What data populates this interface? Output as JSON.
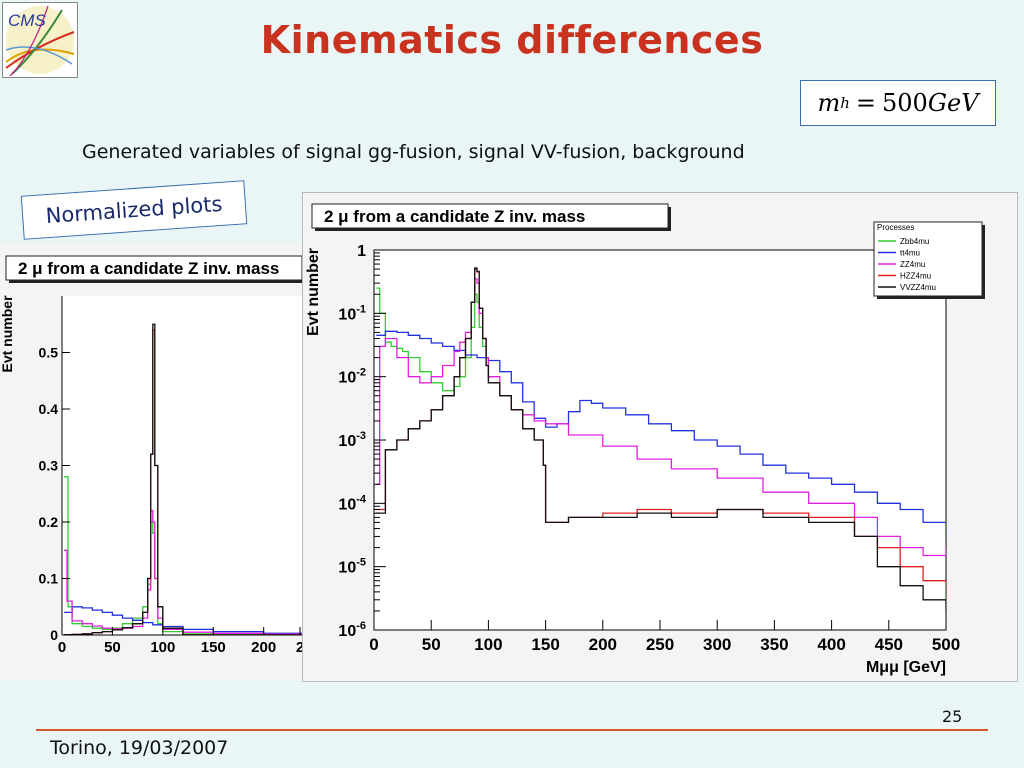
{
  "slide": {
    "logo_text": "CMS",
    "title": "Kinematics differences",
    "formula": {
      "var": "m",
      "sub": "h",
      "eq": "=",
      "num": "500",
      "unit": "GeV"
    },
    "subtitle": "Generated variables of  signal gg-fusion, signal VV-fusion, background",
    "note": "Normalized plots",
    "footer": "Torino, 19/03/2007",
    "page_number": "25"
  },
  "chart_data": [
    {
      "type": "line",
      "title": "2 μ from a candidate Z inv. mass",
      "ylabel": "Evt number",
      "xlabel": "",
      "ylim": [
        0,
        0.6
      ],
      "xlim": [
        0,
        240
      ],
      "yscale": "linear",
      "x_ticks": [
        "0",
        "50",
        "100",
        "150",
        "200",
        "2"
      ],
      "y_ticks": [
        "0",
        "0.1",
        "0.2",
        "0.3",
        "0.4",
        "0.5"
      ],
      "grid": false,
      "series": [
        {
          "name": "Zbb4mu",
          "color": "#33cc33",
          "x": [
            2,
            6,
            10,
            20,
            30,
            40,
            50,
            60,
            70,
            80,
            85,
            88,
            90,
            92,
            95,
            100,
            120,
            150,
            200,
            240
          ],
          "values": [
            0.28,
            0.05,
            0.02,
            0.015,
            0.012,
            0.01,
            0.012,
            0.02,
            0.03,
            0.05,
            0.09,
            0.2,
            0.18,
            0.1,
            0.02,
            0.006,
            0.002,
            0.001,
            0.0005,
            0.0003
          ]
        },
        {
          "name": "tt4mu",
          "color": "#2233dd",
          "x": [
            2,
            10,
            20,
            30,
            40,
            50,
            60,
            70,
            80,
            90,
            100,
            120,
            150,
            200,
            240
          ],
          "values": [
            0.04,
            0.05,
            0.048,
            0.044,
            0.04,
            0.035,
            0.03,
            0.026,
            0.022,
            0.018,
            0.015,
            0.01,
            0.006,
            0.003,
            0.002
          ]
        },
        {
          "name": "ZZ4mu",
          "color": "#e020e0",
          "x": [
            2,
            5,
            10,
            20,
            30,
            40,
            50,
            60,
            70,
            80,
            85,
            88,
            90,
            92,
            95,
            100,
            120,
            150,
            200,
            240
          ],
          "values": [
            0.15,
            0.06,
            0.025,
            0.02,
            0.016,
            0.012,
            0.011,
            0.012,
            0.015,
            0.03,
            0.08,
            0.22,
            0.2,
            0.1,
            0.03,
            0.01,
            0.005,
            0.003,
            0.0015,
            0.001
          ]
        },
        {
          "name": "HZZ4mu",
          "color": "#e02020",
          "x": [
            2,
            10,
            20,
            30,
            40,
            50,
            60,
            70,
            80,
            85,
            88,
            90,
            92,
            95,
            100,
            120,
            150,
            200,
            240
          ],
          "values": [
            0.0005,
            0.001,
            0.002,
            0.004,
            0.006,
            0.009,
            0.013,
            0.02,
            0.04,
            0.1,
            0.32,
            0.54,
            0.3,
            0.05,
            0.012,
            0.0002,
            6e-05,
            5e-05,
            4e-05
          ]
        },
        {
          "name": "VVZZ4mu",
          "color": "#111111",
          "x": [
            2,
            10,
            20,
            30,
            40,
            50,
            60,
            70,
            80,
            85,
            88,
            90,
            92,
            95,
            100,
            120,
            150,
            200,
            240
          ],
          "values": [
            0.0005,
            0.001,
            0.002,
            0.004,
            0.006,
            0.009,
            0.013,
            0.02,
            0.04,
            0.1,
            0.32,
            0.55,
            0.3,
            0.05,
            0.012,
            0.0002,
            6e-05,
            5e-05,
            4e-05
          ]
        }
      ]
    },
    {
      "type": "line",
      "title": "2 μ from a candidate Z inv. mass",
      "ylabel": "Evt number",
      "xlabel": "Mμμ [GeV]",
      "xlim": [
        0,
        500
      ],
      "ylim": [
        1e-06,
        1
      ],
      "yscale": "log",
      "x_ticks": [
        "0",
        "50",
        "100",
        "150",
        "200",
        "250",
        "300",
        "350",
        "400",
        "450",
        "500"
      ],
      "y_ticks": [
        {
          "value": 1e-06,
          "base": "10",
          "exp": "-6"
        },
        {
          "value": 1e-05,
          "base": "10",
          "exp": "-5"
        },
        {
          "value": 0.0001,
          "base": "10",
          "exp": "-4"
        },
        {
          "value": 0.001,
          "base": "10",
          "exp": "-3"
        },
        {
          "value": 0.01,
          "base": "10",
          "exp": "-2"
        },
        {
          "value": 0.1,
          "base": "10",
          "exp": "-1"
        },
        {
          "value": 1,
          "base": "1",
          "exp": ""
        }
      ],
      "grid": false,
      "legend": {
        "title": "Processes",
        "placement": "top-right"
      },
      "series": [
        {
          "name": "Zbb4mu",
          "color": "#33cc33",
          "x": [
            2,
            5,
            10,
            15,
            20,
            25,
            30,
            40,
            50,
            60,
            70,
            75,
            80,
            85,
            88,
            90,
            92,
            95,
            98,
            100
          ],
          "values": [
            0.25,
            0.1,
            0.035,
            0.03,
            0.028,
            0.025,
            0.02,
            0.012,
            0.008,
            0.006,
            0.007,
            0.01,
            0.02,
            0.06,
            0.2,
            0.15,
            0.06,
            0.03,
            0.02,
            0.01
          ]
        },
        {
          "name": "tt4mu",
          "color": "#2233dd",
          "x": [
            2,
            10,
            20,
            30,
            40,
            50,
            60,
            70,
            80,
            90,
            100,
            110,
            120,
            130,
            140,
            150,
            160,
            170,
            180,
            190,
            200,
            220,
            240,
            260,
            280,
            300,
            320,
            340,
            360,
            380,
            400,
            420,
            440,
            460,
            480,
            500
          ],
          "values": [
            0.045,
            0.052,
            0.05,
            0.045,
            0.04,
            0.034,
            0.03,
            0.026,
            0.022,
            0.02,
            0.018,
            0.012,
            0.008,
            0.004,
            0.0022,
            0.0016,
            0.0018,
            0.0028,
            0.0042,
            0.0038,
            0.0032,
            0.0025,
            0.0018,
            0.0014,
            0.001,
            0.0008,
            0.0006,
            0.0004,
            0.0003,
            0.00025,
            0.0002,
            0.00015,
            0.0001,
            8e-05,
            5e-05,
            3e-05
          ]
        },
        {
          "name": "ZZ4mu",
          "color": "#e020e0",
          "x": [
            2,
            5,
            10,
            20,
            30,
            40,
            50,
            60,
            70,
            75,
            80,
            85,
            88,
            90,
            92,
            95,
            98,
            100,
            110,
            120,
            130,
            140,
            150,
            170,
            200,
            230,
            260,
            300,
            340,
            380,
            420,
            440,
            460,
            480,
            500
          ],
          "values": [
            0.0002,
            0.03,
            0.04,
            0.02,
            0.01,
            0.008,
            0.01,
            0.015,
            0.025,
            0.035,
            0.05,
            0.15,
            0.35,
            0.3,
            0.1,
            0.04,
            0.02,
            0.01,
            0.005,
            0.003,
            0.0025,
            0.002,
            0.0018,
            0.0012,
            0.0008,
            0.0005,
            0.00035,
            0.00025,
            0.00015,
            0.0001,
            6e-05,
            3e-05,
            2e-05,
            1.5e-05,
            2e-05
          ]
        },
        {
          "name": "HZZ4mu",
          "color": "#e02020",
          "x": [
            2,
            10,
            20,
            30,
            40,
            50,
            60,
            70,
            75,
            80,
            85,
            88,
            90,
            92,
            95,
            98,
            100,
            110,
            120,
            130,
            140,
            148,
            150,
            170,
            200,
            230,
            260,
            300,
            340,
            380,
            420,
            440,
            460,
            480,
            500
          ],
          "values": [
            8e-05,
            0.0007,
            0.001,
            0.0015,
            0.002,
            0.003,
            0.005,
            0.01,
            0.02,
            0.04,
            0.15,
            0.5,
            0.45,
            0.12,
            0.04,
            0.015,
            0.008,
            0.005,
            0.003,
            0.0015,
            0.001,
            0.0004,
            5e-05,
            6e-05,
            7e-05,
            8e-05,
            7e-05,
            8e-05,
            7e-05,
            6e-05,
            3e-05,
            2e-05,
            1e-05,
            6e-06,
            3e-06
          ]
        },
        {
          "name": "VVZZ4mu",
          "color": "#111111",
          "x": [
            2,
            10,
            20,
            30,
            40,
            50,
            60,
            70,
            75,
            80,
            85,
            88,
            90,
            92,
            95,
            98,
            100,
            110,
            120,
            130,
            140,
            148,
            150,
            170,
            200,
            230,
            260,
            300,
            340,
            380,
            420,
            440,
            460,
            480,
            500
          ],
          "values": [
            7e-05,
            0.0007,
            0.001,
            0.0015,
            0.002,
            0.003,
            0.005,
            0.01,
            0.02,
            0.04,
            0.15,
            0.52,
            0.46,
            0.12,
            0.04,
            0.015,
            0.008,
            0.005,
            0.003,
            0.0015,
            0.001,
            0.0004,
            5e-05,
            6e-05,
            6e-05,
            7e-05,
            6e-05,
            8e-05,
            6e-05,
            5e-05,
            3e-05,
            1e-05,
            5e-06,
            3e-06,
            2e-06
          ]
        }
      ]
    }
  ]
}
